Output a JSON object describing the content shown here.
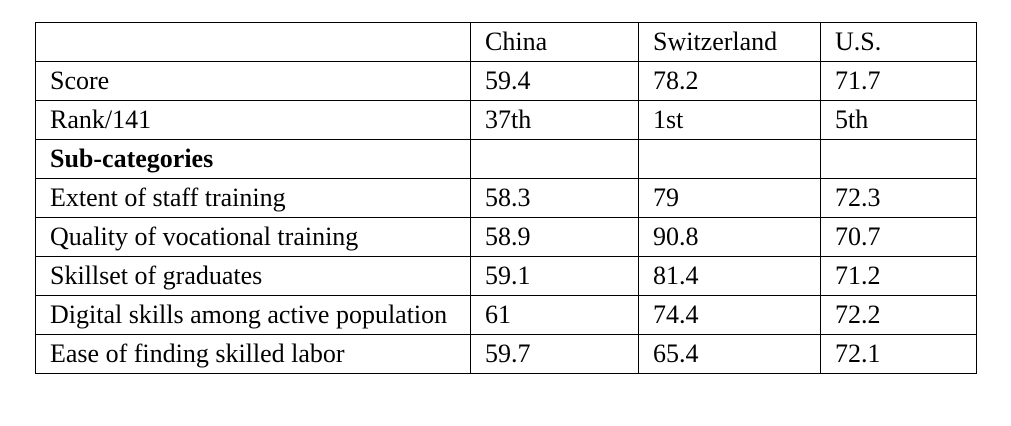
{
  "table": {
    "columns": [
      "China",
      "Switzerland",
      "U.S."
    ],
    "rows": [
      [
        "Score",
        59.4,
        78.2,
        71.7
      ],
      [
        "Rank/141",
        "37th",
        "1st",
        "5th"
      ],
      [
        "Sub-categories"
      ],
      [
        "Extent of staff training",
        58.3,
        79,
        72.3
      ],
      [
        "Quality of vocational training",
        58.9,
        90.8,
        70.7
      ],
      [
        "Skillset of graduates",
        59.1,
        81.4,
        71.2
      ],
      [
        "Digital skills among active population",
        61,
        74.4,
        72.2
      ],
      [
        "Ease of finding skilled labor",
        59.7,
        65.4,
        72.1
      ]
    ]
  }
}
